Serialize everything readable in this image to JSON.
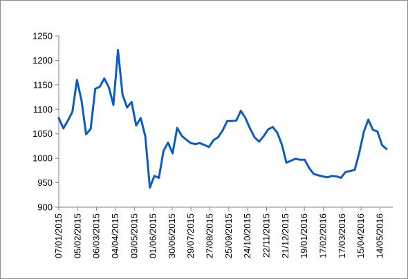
{
  "chart_data": {
    "type": "line",
    "title": "",
    "xlabel": "",
    "ylabel": "",
    "ylim": [
      900,
      1250
    ],
    "yticks": [
      900,
      950,
      1000,
      1050,
      1100,
      1150,
      1200,
      1250
    ],
    "grid": false,
    "legend": "none",
    "color": "#0a5bc4",
    "x_tick_labels": [
      "07/01/2015",
      "05/02/2015",
      "06/03/2015",
      "04/04/2015",
      "03/05/2015",
      "01/06/2015",
      "30/06/2015",
      "29/07/2015",
      "27/08/2015",
      "25/09/2015",
      "24/10/2015",
      "22/11/2015",
      "21/12/2015",
      "19/01/2016",
      "17/02/2016",
      "17/03/2016",
      "15/04/2016",
      "14/05/2016"
    ],
    "series": [
      {
        "values": [
          1082,
          1061,
          1077,
          1095,
          1160,
          1118,
          1049,
          1060,
          1142,
          1146,
          1163,
          1145,
          1109,
          1221,
          1130,
          1104,
          1115,
          1067,
          1082,
          1045,
          940,
          964,
          960,
          1015,
          1032,
          1010,
          1062,
          1046,
          1038,
          1031,
          1029,
          1031,
          1027,
          1023,
          1037,
          1043,
          1057,
          1076,
          1076,
          1077,
          1097,
          1082,
          1061,
          1043,
          1034,
          1045,
          1059,
          1064,
          1052,
          1028,
          991,
          995,
          999,
          997,
          997,
          980,
          968,
          965,
          963,
          961,
          964,
          963,
          960,
          972,
          974,
          976,
          1011,
          1054,
          1079,
          1058,
          1055,
          1027,
          1019
        ]
      }
    ]
  }
}
